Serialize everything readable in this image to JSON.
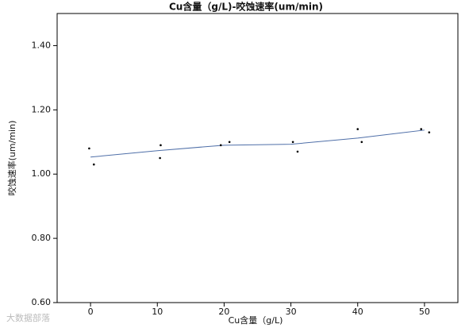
{
  "chart_data": {
    "type": "scatter",
    "title": "Cu含量（g/L)-咬蚀速率(um/min)",
    "x_label": "Cu含量（g/L)",
    "y_label": "咬蚀速率(um/min)",
    "watermark": "大数据部落",
    "xlim": [
      -5,
      55
    ],
    "ylim": [
      0.6,
      1.5
    ],
    "xticks": [
      0,
      10,
      20,
      30,
      40,
      50
    ],
    "yticks": [
      {
        "value": 0.6,
        "label": "0.60"
      },
      {
        "value": 0.8,
        "label": "0.80"
      },
      {
        "value": 1.0,
        "label": "1.00"
      },
      {
        "value": 1.2,
        "label": "1.20"
      },
      {
        "value": 1.4,
        "label": "1.40"
      }
    ],
    "points": {
      "color": "#000000",
      "x": [
        -0.2,
        0.5,
        10.5,
        10.4,
        19.5,
        20.8,
        30.3,
        31,
        40,
        40.6,
        49.5,
        50.7
      ],
      "values": [
        1.08,
        1.03,
        1.09,
        1.05,
        1.09,
        1.1,
        1.1,
        1.07,
        1.14,
        1.1,
        1.14,
        1.13
      ]
    },
    "fit_line": {
      "color": "#4f6fa8",
      "x": [
        0,
        10,
        20,
        30,
        40,
        50
      ],
      "values": [
        1.053,
        1.073,
        1.09,
        1.093,
        1.112,
        1.137
      ]
    }
  }
}
